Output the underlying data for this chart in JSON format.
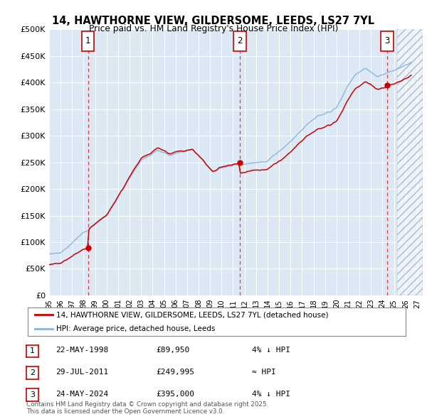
{
  "title_line1": "14, HAWTHORNE VIEW, GILDERSOME, LEEDS, LS27 7YL",
  "title_line2": "Price paid vs. HM Land Registry's House Price Index (HPI)",
  "ylim": [
    0,
    500000
  ],
  "yticks": [
    0,
    50000,
    100000,
    150000,
    200000,
    250000,
    300000,
    350000,
    400000,
    450000,
    500000
  ],
  "ytick_labels": [
    "£0",
    "£50K",
    "£100K",
    "£150K",
    "£200K",
    "£250K",
    "£300K",
    "£350K",
    "£400K",
    "£450K",
    "£500K"
  ],
  "xlim_start": 1995.0,
  "xlim_end": 2027.5,
  "plot_bg_color": "#dce9f5",
  "grid_color": "#ffffff",
  "hpi_color": "#8ab4d8",
  "price_color": "#cc0000",
  "vline_dates": [
    1998.38,
    2011.57,
    2024.39
  ],
  "sale_dates": [
    1998.38,
    2011.57,
    2024.39
  ],
  "sale_prices": [
    89950,
    249995,
    395000
  ],
  "sale_labels": [
    "1",
    "2",
    "3"
  ],
  "legend_entries": [
    "14, HAWTHORNE VIEW, GILDERSOME, LEEDS, LS27 7YL (detached house)",
    "HPI: Average price, detached house, Leeds"
  ],
  "table_rows": [
    {
      "num": "1",
      "date": "22-MAY-1998",
      "price": "£89,950",
      "note": "4% ↓ HPI"
    },
    {
      "num": "2",
      "date": "29-JUL-2011",
      "price": "£249,995",
      "note": "≈ HPI"
    },
    {
      "num": "3",
      "date": "24-MAY-2024",
      "price": "£395,000",
      "note": "4% ↓ HPI"
    }
  ],
  "footer": "Contains HM Land Registry data © Crown copyright and database right 2025.\nThis data is licensed under the Open Government Licence v3.0.",
  "future_start": 2025.25
}
